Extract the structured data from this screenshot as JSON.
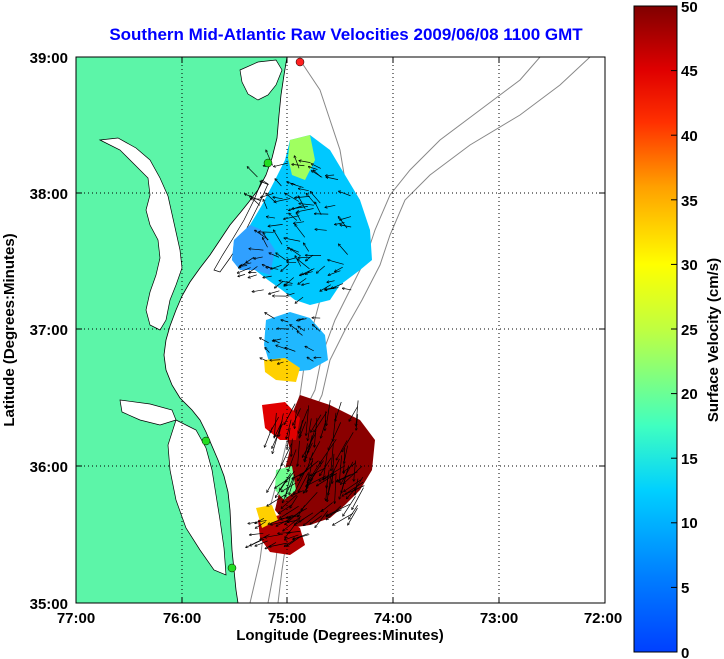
{
  "title": "Southern Mid-Atlantic Raw Velocities 2009/06/08 1100 GMT",
  "x_axis": {
    "label": "Longitude (Degrees:Minutes)",
    "ticks": [
      "77:00",
      "76:00",
      "75:00",
      "74:00",
      "73:00",
      "72:00"
    ]
  },
  "y_axis": {
    "label": "Latitude (Degrees:Minutes)",
    "ticks": [
      "39:00",
      "38:00",
      "37:00",
      "36:00",
      "35:00"
    ]
  },
  "colorbar": {
    "label": "Surface Velocity (cm/s)",
    "ticks": [
      "50",
      "45",
      "40",
      "35",
      "30",
      "25",
      "20",
      "15",
      "10",
      "5",
      "0"
    ],
    "min": 0,
    "max": 50
  },
  "colors": {
    "land": "#5cf5a8",
    "title": "#0000ff",
    "station": "#22dd22",
    "station_active": "#ff2020"
  },
  "chart_data": {
    "type": "heatmap",
    "title": "Southern Mid-Atlantic Raw Velocities 2009/06/08 1100 GMT",
    "xlabel": "Longitude (Degrees:Minutes)",
    "ylabel": "Latitude (Degrees:Minutes)",
    "xlim": [
      -77,
      -72
    ],
    "ylim": [
      35,
      39
    ],
    "grid": true,
    "colorbar_range": [
      0,
      50
    ],
    "colorbar_label": "Surface Velocity (cm/s)"
  }
}
